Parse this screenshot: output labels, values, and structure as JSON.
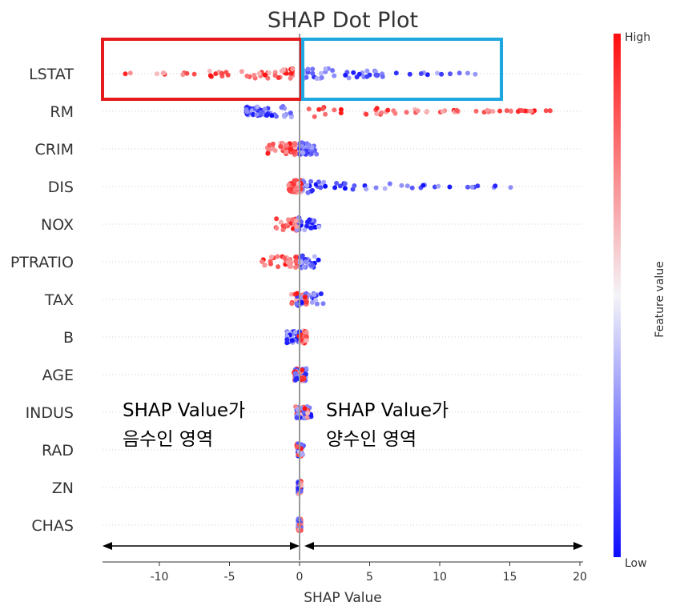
{
  "chart_data": {
    "type": "scatter",
    "subtype": "shap-beeswarm",
    "title": "SHAP Dot Plot",
    "xlabel": "SHAP Value",
    "xlim": [
      -14,
      20
    ],
    "xticks": [
      -10,
      -5,
      0,
      5,
      10,
      15,
      20
    ],
    "features": [
      {
        "name": "LSTAT",
        "low_effect": [
          0.2,
          12.8
        ],
        "high_effect": [
          -12.5,
          -0.5
        ]
      },
      {
        "name": "RM",
        "low_effect": [
          -3.8,
          -0.5
        ],
        "high_effect": [
          0.5,
          18.6
        ]
      },
      {
        "name": "CRIM",
        "low_effect": [
          0.0,
          1.3
        ],
        "high_effect": [
          -2.4,
          -0.3
        ]
      },
      {
        "name": "DIS",
        "low_effect": [
          0.2,
          15.2
        ],
        "high_effect": [
          -0.8,
          0.1
        ]
      },
      {
        "name": "NOX",
        "low_effect": [
          -0.2,
          1.5
        ],
        "high_effect": [
          -1.7,
          -0.2
        ]
      },
      {
        "name": "PTRATIO",
        "low_effect": [
          0.0,
          1.5
        ],
        "high_effect": [
          -3.0,
          -0.1
        ]
      },
      {
        "name": "TAX",
        "low_effect": [
          -0.2,
          1.7
        ],
        "high_effect": [
          -0.6,
          0.5
        ]
      },
      {
        "name": "B",
        "low_effect": [
          -0.9,
          0.0
        ],
        "high_effect": [
          -0.2,
          0.5
        ]
      },
      {
        "name": "AGE",
        "low_effect": [
          -0.3,
          0.5
        ],
        "high_effect": [
          -0.4,
          0.3
        ]
      },
      {
        "name": "INDUS",
        "low_effect": [
          -0.2,
          0.9
        ],
        "high_effect": [
          -0.3,
          0.6
        ]
      },
      {
        "name": "RAD",
        "low_effect": [
          -0.1,
          0.3
        ],
        "high_effect": [
          -0.2,
          0.1
        ]
      },
      {
        "name": "ZN",
        "low_effect": [
          -0.1,
          0.1
        ],
        "high_effect": [
          -0.1,
          0.1
        ]
      },
      {
        "name": "CHAS",
        "low_effect": [
          -0.1,
          0.1
        ],
        "high_effect": [
          -0.1,
          0.1
        ]
      }
    ],
    "colorbar": {
      "label": "Feature value",
      "high": "High",
      "low": "Low",
      "high_color": "#ff0d0d",
      "low_color": "#0c0cff",
      "mid_color": "#f4f4f8"
    },
    "annotations": {
      "negative": [
        "SHAP Value가",
        "음수인 영역"
      ],
      "positive": [
        "SHAP Value가",
        "양수인 영역"
      ],
      "negative_box_color": "#e41a1c",
      "positive_box_color": "#1ea7e1"
    }
  }
}
